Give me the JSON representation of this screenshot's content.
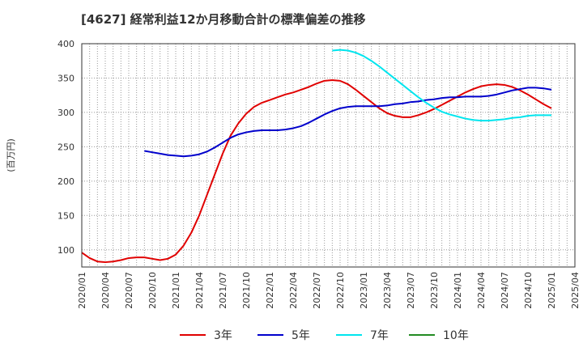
{
  "chart_data": {
    "type": "line",
    "title": "[4627]  経常利益12か月移動合計の標準偏差の推移",
    "ylabel": "(百万円)",
    "xlabel": "",
    "ylim": [
      75,
      400
    ],
    "yticks": [
      100,
      150,
      200,
      250,
      300,
      350,
      400
    ],
    "x_range": [
      "2020/01",
      "2025/04"
    ],
    "xticks": [
      "2020/01",
      "2020/04",
      "2020/07",
      "2020/10",
      "2021/01",
      "2021/04",
      "2021/07",
      "2021/10",
      "2022/01",
      "2022/04",
      "2022/07",
      "2022/10",
      "2023/01",
      "2023/04",
      "2023/07",
      "2023/10",
      "2024/01",
      "2024/04",
      "2024/07",
      "2024/10",
      "2025/01",
      "2025/04"
    ],
    "grid": true,
    "legend_position": "bottom",
    "series": [
      {
        "name": "3年",
        "color": "#e00000",
        "points": [
          [
            "2020/01",
            96
          ],
          [
            "2020/02",
            88
          ],
          [
            "2020/03",
            83
          ],
          [
            "2020/04",
            82
          ],
          [
            "2020/05",
            83
          ],
          [
            "2020/06",
            85
          ],
          [
            "2020/07",
            88
          ],
          [
            "2020/08",
            89
          ],
          [
            "2020/09",
            89
          ],
          [
            "2020/10",
            87
          ],
          [
            "2020/11",
            85
          ],
          [
            "2020/12",
            87
          ],
          [
            "2021/01",
            93
          ],
          [
            "2021/02",
            106
          ],
          [
            "2021/03",
            125
          ],
          [
            "2021/04",
            150
          ],
          [
            "2021/05",
            180
          ],
          [
            "2021/06",
            210
          ],
          [
            "2021/07",
            240
          ],
          [
            "2021/08",
            266
          ],
          [
            "2021/09",
            284
          ],
          [
            "2021/10",
            298
          ],
          [
            "2021/11",
            308
          ],
          [
            "2021/12",
            314
          ],
          [
            "2022/01",
            318
          ],
          [
            "2022/02",
            322
          ],
          [
            "2022/03",
            326
          ],
          [
            "2022/04",
            329
          ],
          [
            "2022/05",
            333
          ],
          [
            "2022/06",
            337
          ],
          [
            "2022/07",
            342
          ],
          [
            "2022/08",
            346
          ],
          [
            "2022/09",
            347
          ],
          [
            "2022/10",
            346
          ],
          [
            "2022/11",
            341
          ],
          [
            "2022/12",
            333
          ],
          [
            "2023/01",
            324
          ],
          [
            "2023/02",
            315
          ],
          [
            "2023/03",
            306
          ],
          [
            "2023/04",
            299
          ],
          [
            "2023/05",
            295
          ],
          [
            "2023/06",
            293
          ],
          [
            "2023/07",
            293
          ],
          [
            "2023/08",
            296
          ],
          [
            "2023/09",
            300
          ],
          [
            "2023/10",
            305
          ],
          [
            "2023/11",
            311
          ],
          [
            "2023/12",
            317
          ],
          [
            "2024/01",
            323
          ],
          [
            "2024/02",
            329
          ],
          [
            "2024/03",
            334
          ],
          [
            "2024/04",
            338
          ],
          [
            "2024/05",
            340
          ],
          [
            "2024/06",
            341
          ],
          [
            "2024/07",
            340
          ],
          [
            "2024/08",
            337
          ],
          [
            "2024/09",
            332
          ],
          [
            "2024/10",
            326
          ],
          [
            "2024/11",
            319
          ],
          [
            "2024/12",
            312
          ],
          [
            "2025/01",
            306
          ]
        ]
      },
      {
        "name": "5年",
        "color": "#0000cc",
        "points": [
          [
            "2020/09",
            244
          ],
          [
            "2020/10",
            242
          ],
          [
            "2020/11",
            240
          ],
          [
            "2020/12",
            238
          ],
          [
            "2021/01",
            237
          ],
          [
            "2021/02",
            236
          ],
          [
            "2021/03",
            237
          ],
          [
            "2021/04",
            239
          ],
          [
            "2021/05",
            243
          ],
          [
            "2021/06",
            249
          ],
          [
            "2021/07",
            256
          ],
          [
            "2021/08",
            263
          ],
          [
            "2021/09",
            268
          ],
          [
            "2021/10",
            271
          ],
          [
            "2021/11",
            273
          ],
          [
            "2021/12",
            274
          ],
          [
            "2022/01",
            274
          ],
          [
            "2022/02",
            274
          ],
          [
            "2022/03",
            275
          ],
          [
            "2022/04",
            277
          ],
          [
            "2022/05",
            280
          ],
          [
            "2022/06",
            285
          ],
          [
            "2022/07",
            291
          ],
          [
            "2022/08",
            297
          ],
          [
            "2022/09",
            302
          ],
          [
            "2022/10",
            306
          ],
          [
            "2022/11",
            308
          ],
          [
            "2022/12",
            309
          ],
          [
            "2023/01",
            309
          ],
          [
            "2023/02",
            309
          ],
          [
            "2023/03",
            309
          ],
          [
            "2023/04",
            310
          ],
          [
            "2023/05",
            312
          ],
          [
            "2023/06",
            313
          ],
          [
            "2023/07",
            315
          ],
          [
            "2023/08",
            316
          ],
          [
            "2023/09",
            318
          ],
          [
            "2023/10",
            319
          ],
          [
            "2023/11",
            321
          ],
          [
            "2023/12",
            322
          ],
          [
            "2024/01",
            322
          ],
          [
            "2024/02",
            323
          ],
          [
            "2024/03",
            323
          ],
          [
            "2024/04",
            323
          ],
          [
            "2024/05",
            324
          ],
          [
            "2024/06",
            326
          ],
          [
            "2024/07",
            329
          ],
          [
            "2024/08",
            332
          ],
          [
            "2024/09",
            334
          ],
          [
            "2024/10",
            336
          ],
          [
            "2024/11",
            336
          ],
          [
            "2024/12",
            335
          ],
          [
            "2025/01",
            333
          ]
        ]
      },
      {
        "name": "7年",
        "color": "#00e5ee",
        "points": [
          [
            "2022/09",
            390
          ],
          [
            "2022/10",
            391
          ],
          [
            "2022/11",
            390
          ],
          [
            "2022/12",
            387
          ],
          [
            "2023/01",
            382
          ],
          [
            "2023/02",
            375
          ],
          [
            "2023/03",
            367
          ],
          [
            "2023/04",
            358
          ],
          [
            "2023/05",
            349
          ],
          [
            "2023/06",
            340
          ],
          [
            "2023/07",
            331
          ],
          [
            "2023/08",
            322
          ],
          [
            "2023/09",
            314
          ],
          [
            "2023/10",
            307
          ],
          [
            "2023/11",
            301
          ],
          [
            "2023/12",
            297
          ],
          [
            "2024/01",
            294
          ],
          [
            "2024/02",
            291
          ],
          [
            "2024/03",
            289
          ],
          [
            "2024/04",
            288
          ],
          [
            "2024/05",
            288
          ],
          [
            "2024/06",
            289
          ],
          [
            "2024/07",
            290
          ],
          [
            "2024/08",
            292
          ],
          [
            "2024/09",
            293
          ],
          [
            "2024/10",
            295
          ],
          [
            "2024/11",
            296
          ],
          [
            "2024/12",
            296
          ],
          [
            "2025/01",
            296
          ]
        ]
      },
      {
        "name": "10年",
        "color": "#228b22",
        "points": []
      }
    ]
  }
}
